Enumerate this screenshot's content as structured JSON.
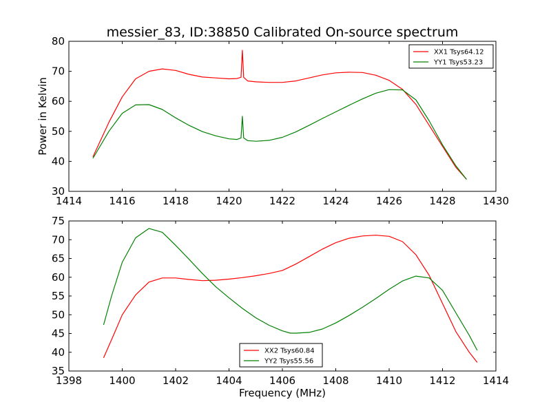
{
  "chart_data": [
    {
      "type": "line",
      "title": "messier_83, ID:38850 Calibrated On-source spectrum",
      "xlabel": "",
      "ylabel": "Power in Kelvin",
      "xlim": [
        1414,
        1430
      ],
      "ylim": [
        30,
        80
      ],
      "xticks": [
        "1414",
        "1416",
        "1418",
        "1420",
        "1422",
        "1424",
        "1426",
        "1428",
        "1430"
      ],
      "yticks": [
        "30",
        "40",
        "50",
        "60",
        "70",
        "80"
      ],
      "legend_position": "top-right",
      "series": [
        {
          "name": "XX1 Tsys64.12",
          "color": "#ff0000",
          "x": [
            1414.9,
            1415.5,
            1416.0,
            1416.5,
            1417.0,
            1417.5,
            1418.0,
            1418.5,
            1419.0,
            1419.5,
            1420.0,
            1420.3,
            1420.45,
            1420.5,
            1420.55,
            1420.7,
            1421.0,
            1421.5,
            1422.0,
            1422.5,
            1423.0,
            1423.5,
            1424.0,
            1424.5,
            1425.0,
            1425.5,
            1426.0,
            1426.5,
            1427.0,
            1427.5,
            1428.0,
            1428.5,
            1428.9
          ],
          "y": [
            41.5,
            53.0,
            61.5,
            67.5,
            70.0,
            70.8,
            70.3,
            69.0,
            68.1,
            67.8,
            67.5,
            67.6,
            68.0,
            77.0,
            68.0,
            66.8,
            66.5,
            66.3,
            66.3,
            66.8,
            67.8,
            68.8,
            69.5,
            69.7,
            69.6,
            68.7,
            67.0,
            64.0,
            59.0,
            52.0,
            45.0,
            38.0,
            34.0
          ]
        },
        {
          "name": "YY1 Tsys53.23",
          "color": "#008000",
          "x": [
            1414.9,
            1415.5,
            1416.0,
            1416.5,
            1417.0,
            1417.5,
            1418.0,
            1418.5,
            1419.0,
            1419.5,
            1420.0,
            1420.3,
            1420.45,
            1420.5,
            1420.55,
            1420.7,
            1421.0,
            1421.5,
            1422.0,
            1422.5,
            1423.0,
            1423.5,
            1424.0,
            1424.5,
            1425.0,
            1425.5,
            1426.0,
            1426.5,
            1427.0,
            1427.5,
            1428.0,
            1428.5,
            1428.9
          ],
          "y": [
            41.0,
            50.0,
            56.0,
            58.8,
            58.9,
            57.3,
            54.5,
            52.0,
            49.9,
            48.5,
            47.5,
            47.3,
            47.8,
            55.0,
            47.8,
            46.9,
            46.7,
            47.0,
            48.0,
            49.8,
            52.0,
            54.3,
            56.5,
            58.7,
            60.8,
            62.7,
            63.9,
            63.8,
            60.5,
            53.5,
            45.5,
            38.5,
            34.0
          ]
        }
      ]
    },
    {
      "type": "line",
      "title": "",
      "xlabel": "Frequency (MHz)",
      "ylabel": "",
      "xlim": [
        1398,
        1414
      ],
      "ylim": [
        35,
        75
      ],
      "xticks": [
        "1398",
        "1400",
        "1402",
        "1404",
        "1406",
        "1408",
        "1410",
        "1412",
        "1414"
      ],
      "yticks": [
        "35",
        "40",
        "45",
        "50",
        "55",
        "60",
        "65",
        "70",
        "75"
      ],
      "legend_position": "bottom-center",
      "series": [
        {
          "name": "XX2 Tsys60.84",
          "color": "#ff0000",
          "x": [
            1399.3,
            1399.7,
            1400.0,
            1400.5,
            1401.0,
            1401.5,
            1402.0,
            1402.5,
            1403.0,
            1403.5,
            1404.0,
            1404.5,
            1405.0,
            1405.5,
            1406.0,
            1406.5,
            1407.0,
            1407.5,
            1408.0,
            1408.5,
            1409.0,
            1409.5,
            1410.0,
            1410.5,
            1411.0,
            1411.5,
            1412.0,
            1412.5,
            1413.0,
            1413.3
          ],
          "y": [
            38.5,
            45.0,
            50.0,
            55.3,
            58.7,
            59.8,
            59.8,
            59.4,
            59.1,
            59.2,
            59.5,
            59.9,
            60.4,
            61.0,
            61.8,
            63.5,
            65.5,
            67.5,
            69.2,
            70.4,
            71.0,
            71.2,
            70.9,
            69.5,
            66.0,
            60.5,
            53.0,
            45.5,
            40.0,
            37.3
          ]
        },
        {
          "name": "YY2 Tsys55.56",
          "color": "#008000",
          "x": [
            1399.3,
            1399.6,
            1400.0,
            1400.5,
            1401.0,
            1401.5,
            1402.0,
            1402.5,
            1403.0,
            1403.5,
            1404.0,
            1404.5,
            1405.0,
            1405.5,
            1406.0,
            1406.3,
            1406.5,
            1407.0,
            1407.5,
            1408.0,
            1408.5,
            1409.0,
            1409.5,
            1410.0,
            1410.5,
            1411.0,
            1411.5,
            1412.0,
            1412.5,
            1413.0,
            1413.3
          ],
          "y": [
            47.3,
            55.0,
            64.0,
            70.5,
            73.0,
            72.0,
            68.5,
            64.8,
            61.0,
            57.5,
            54.5,
            51.7,
            49.2,
            47.2,
            45.7,
            45.1,
            45.1,
            45.3,
            46.2,
            47.8,
            49.8,
            52.0,
            54.3,
            56.8,
            59.0,
            60.3,
            59.8,
            56.5,
            50.5,
            44.5,
            40.5
          ]
        }
      ]
    }
  ]
}
